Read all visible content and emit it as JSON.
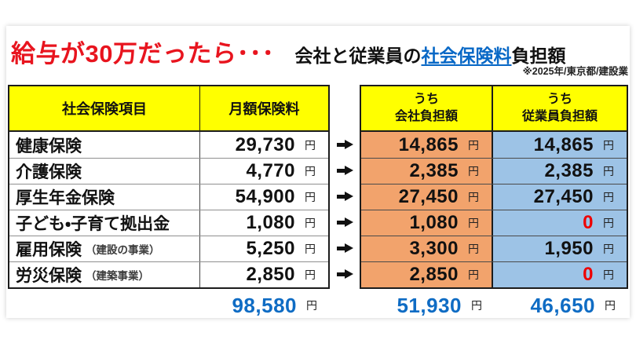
{
  "title": {
    "main": "給与が30万だったら･･･",
    "sub_prefix": "会社と従業員の",
    "sub_link": "社会保険料",
    "sub_suffix": "負担額",
    "note": "※2025年/東京都/建設業"
  },
  "table": {
    "col_item": "社会保険項目",
    "col_monthly": "月額保険料",
    "company_header": {
      "line1": "うち",
      "line2": "会社負担額"
    },
    "employee_header": {
      "line1": "うち",
      "line2": "従業員負担額"
    },
    "unit": "円",
    "rows": [
      {
        "label": "健康保険",
        "sublabel": "",
        "monthly": "29,730",
        "company": "14,865",
        "employee": "14,865"
      },
      {
        "label": "介護保険",
        "sublabel": "",
        "monthly": "4,770",
        "company": "2,385",
        "employee": "2,385"
      },
      {
        "label": "厚生年金保険",
        "sublabel": "",
        "monthly": "54,900",
        "company": "27,450",
        "employee": "27,450"
      },
      {
        "label": "子ども・子育て拠出金",
        "sublabel": "",
        "monthly": "1,080",
        "company": "1,080",
        "employee": "0"
      },
      {
        "label": "雇用保険",
        "sublabel": "（建設の事業）",
        "monthly": "5,250",
        "company": "3,300",
        "employee": "1,950"
      },
      {
        "label": "労災保険",
        "sublabel": "（建築事業）",
        "monthly": "2,850",
        "company": "2,850",
        "employee": "0"
      }
    ],
    "totals": {
      "monthly": "98,580",
      "company": "51,930",
      "employee": "46,650"
    }
  },
  "icons": {
    "row_arrow": "arrow-right"
  },
  "colors": {
    "accent_red": "#e8141e",
    "link_blue": "#0868c6",
    "total_blue": "#0f6cc4",
    "header_yellow": "#ffff00",
    "company_fill": "#f2a36c",
    "employee_fill": "#9dc3e6",
    "zero_red": "#ee0000"
  }
}
